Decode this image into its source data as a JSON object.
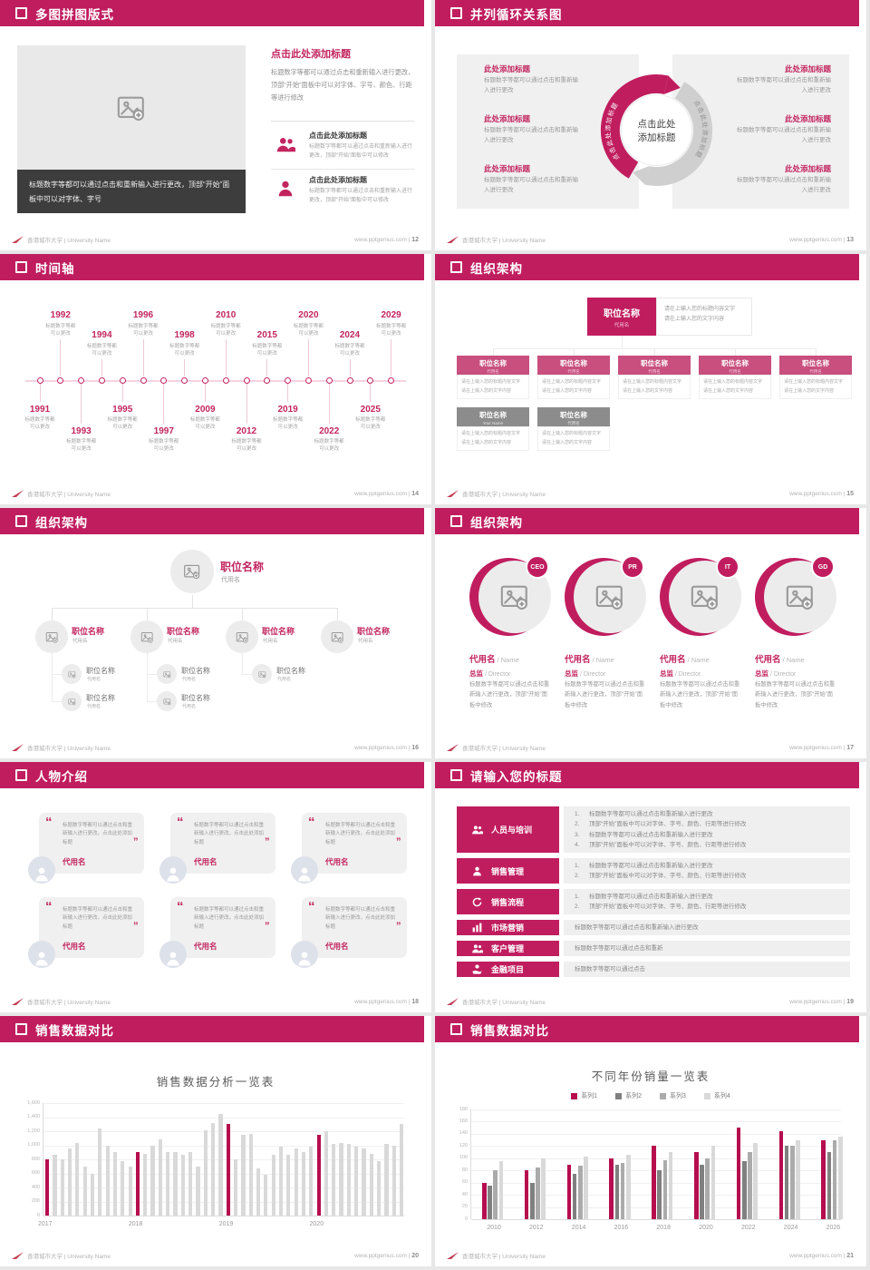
{
  "page_bg": "#e7e7e7",
  "colors": {
    "accent": "#c01d5f",
    "crimson": "#b60d4e",
    "row_pink": "#c84f7e",
    "gray_box": "#8c8c8c",
    "panel": "#f0f0f0",
    "dark_box": "#3d3d3d",
    "text_gray": "#9a9a9a",
    "series": [
      "#b60d4e",
      "#808080",
      "#ababab",
      "#d9d9d9"
    ]
  },
  "footer": {
    "university": "香港城市大学 | University Name",
    "site": "www.pptgenius.com"
  },
  "slides": [
    {
      "page_no": "12",
      "title": "多图拼图版式",
      "kind": "puzzle",
      "content": {
        "image_icon": "image-placeholder-icon",
        "caption": "标题数字等都可以通过点击和重新输入进行更改，顶部“开始”面板中可以对字体、字号",
        "right_title": "点击此处添加标题",
        "right_body": "标题数字等都可以通过点击和重新输入进行更改，顶部“开始”面板中可以对字体、字号、颜色、行距等进行修改",
        "items": [
          {
            "icon": "people-icon",
            "title": "点击此处添加标题",
            "body": "标题数字等都可以通过点击和重新输入进行更改，顶部“开始”面板中可以修改"
          },
          {
            "icon": "person-icon",
            "title": "点击此处添加标题",
            "body": "标题数字等都可以通过点击和重新输入进行更改，顶部“开始”面板中可以修改"
          }
        ]
      }
    },
    {
      "page_no": "13",
      "title": "并列循环关系图",
      "kind": "cycle",
      "content": {
        "left_items": [
          {
            "t": "此处添加标题",
            "b": "标题数字等都可以通过点击和重新输入进行更改"
          },
          {
            "t": "此处添加标题",
            "b": "标题数字等都可以通过点击和重新输入进行更改"
          },
          {
            "t": "此处添加标题",
            "b": "标题数字等都可以通过点击和重新输入进行更改"
          }
        ],
        "right_items": [
          {
            "t": "此处添加标题",
            "b": "标题数字等都可以通过点击和重新输入进行更改"
          },
          {
            "t": "此处添加标题",
            "b": "标题数字等都可以通过点击和重新输入进行更改"
          },
          {
            "t": "此处添加标题",
            "b": "标题数字等都可以通过点击和重新输入进行更改"
          }
        ],
        "center_line1": "点击此处",
        "center_line2": "添加标题",
        "arrow_label": "点击此处添加标题"
      }
    },
    {
      "page_no": "14",
      "title": "时间轴",
      "kind": "timeline",
      "content": {
        "caption_line1": "标题数字等都",
        "caption_line2": "可以更改",
        "entries": [
          {
            "year": "1991",
            "side": "b"
          },
          {
            "year": "1992",
            "side": "a"
          },
          {
            "year": "1993",
            "side": "b"
          },
          {
            "year": "1994",
            "side": "a"
          },
          {
            "year": "1995",
            "side": "b"
          },
          {
            "year": "1996",
            "side": "a"
          },
          {
            "year": "1997",
            "side": "b"
          },
          {
            "year": "1998",
            "side": "a"
          },
          {
            "year": "2009",
            "side": "b"
          },
          {
            "year": "2010",
            "side": "a"
          },
          {
            "year": "2012",
            "side": "b"
          },
          {
            "year": "2015",
            "side": "a"
          },
          {
            "year": "2019",
            "side": "b"
          },
          {
            "year": "2020",
            "side": "a"
          },
          {
            "year": "2022",
            "side": "b"
          },
          {
            "year": "2024",
            "side": "a"
          },
          {
            "year": "2025",
            "side": "b"
          },
          {
            "year": "2029",
            "side": "a"
          }
        ]
      }
    },
    {
      "page_no": "15",
      "title": "组织架构",
      "kind": "orggrid",
      "content": {
        "root": {
          "title": "职位名称",
          "name": "代用名"
        },
        "note_lines": [
          "请在上输入您的标题内容文字",
          "请在上输入您的文字内容"
        ],
        "body_lines": [
          "请在上输入您的标题内容文字",
          "请在上输入您的文字内容"
        ],
        "row1": [
          {
            "title": "职位名称",
            "name": "代用名"
          },
          {
            "title": "职位名称",
            "name": "代用名"
          },
          {
            "title": "职位名称",
            "name": "代用名"
          },
          {
            "title": "职位名称",
            "name": "代用名"
          },
          {
            "title": "职位名称",
            "name": "代用名"
          }
        ],
        "row2": [
          {
            "title": "职位名称",
            "name": "Your Name"
          },
          {
            "title": "职位名称",
            "name": "代用名"
          }
        ]
      }
    },
    {
      "page_no": "16",
      "title": "组织架构",
      "kind": "orgtree",
      "content": {
        "root": {
          "title": "职位名称",
          "name": "代用名"
        },
        "children": [
          {
            "title": "职位名称",
            "name": "代用名",
            "subs": [
              {
                "t": "职位名称",
                "n": "代用名"
              },
              {
                "t": "职位名称",
                "n": "代用名"
              }
            ]
          },
          {
            "title": "职位名称",
            "name": "代用名",
            "subs": [
              {
                "t": "职位名称",
                "n": "代用名"
              },
              {
                "t": "职位名称",
                "n": "代用名"
              }
            ]
          },
          {
            "title": "职位名称",
            "name": "代用名",
            "subs": [
              {
                "t": "职位名称",
                "n": "代用名"
              }
            ]
          },
          {
            "title": "职位名称",
            "name": "代用名",
            "subs": []
          }
        ]
      }
    },
    {
      "page_no": "17",
      "title": "组织架构",
      "kind": "orgcircles",
      "content": {
        "members": [
          {
            "badge": "CEO",
            "name": "代用名",
            "name_en": "Name",
            "role": "总监",
            "role_en": "Director",
            "body": "标题数字等都可以通过点击和重新输入进行更改，顶部“开始”面板中修改"
          },
          {
            "badge": "PR",
            "name": "代用名",
            "name_en": "Name",
            "role": "总监",
            "role_en": "Director",
            "body": "标题数字等都可以通过点击和重新输入进行更改，顶部“开始”面板中修改"
          },
          {
            "badge": "IT",
            "name": "代用名",
            "name_en": "Name",
            "role": "总监",
            "role_en": "Director",
            "body": "标题数字等都可以通过点击和重新输入进行更改，顶部“开始”面板中修改"
          },
          {
            "badge": "GD",
            "name": "代用名",
            "name_en": "Name",
            "role": "总监",
            "role_en": "Director",
            "body": "标题数字等都可以通过点击和重新输入进行更改，顶部“开始”面板中修改"
          }
        ]
      }
    },
    {
      "page_no": "18",
      "title": "人物介绍",
      "kind": "people",
      "content": {
        "cards": [
          {
            "quote": "标题数字等都可以通过点击和重新输入进行更改，点击此处添加标题",
            "name": "代用名"
          },
          {
            "quote": "标题数字等都可以通过点击和重新输入进行更改，点击此处添加标题",
            "name": "代用名"
          },
          {
            "quote": "标题数字等都可以通过点击和重新输入进行更改，点击此处添加标题",
            "name": "代用名"
          },
          {
            "quote": "标题数字等都可以通过点击和重新输入进行更改，点击此处添加标题",
            "name": "代用名"
          },
          {
            "quote": "标题数字等都可以通过点击和重新输入进行更改，点击此处添加标题",
            "name": "代用名"
          },
          {
            "quote": "标题数字等都可以通过点击和重新输入进行更改，点击此处添加标题",
            "name": "代用名"
          }
        ]
      }
    },
    {
      "page_no": "19",
      "title": "请输入您的标题",
      "kind": "agenda",
      "content": {
        "rows": [
          {
            "icon": "training-people-icon",
            "label": "人员与培训",
            "numbered": true,
            "lines": [
              "标题数字等都可以通过点击和重新输入进行更改",
              "顶部“开始”面板中可以对字体、字号、颜色、行距等进行修改",
              "标题数字等都可以通过点击和重新输入进行更改",
              "顶部“开始”面板中可以对字体、字号、颜色、行距等进行修改"
            ]
          },
          {
            "icon": "salesperson-icon",
            "label": "销售管理",
            "numbered": true,
            "lines": [
              "标题数字等都可以通过点击和重新输入进行更改",
              "顶部“开始”面板中可以对字体、字号、颜色、行距等进行修改"
            ]
          },
          {
            "icon": "cycle-icon",
            "label": "销售流程",
            "numbered": true,
            "lines": [
              "标题数字等都可以通过点击和重新输入进行更改",
              "顶部“开始”面板中可以对字体、字号、颜色、行距等进行修改"
            ]
          },
          {
            "icon": "bar-chart-icon",
            "label": "市场营销",
            "numbered": false,
            "lines": [
              "标题数字等都可以通过点击和重新输入进行更改"
            ]
          },
          {
            "icon": "customers-icon",
            "label": "客户管理",
            "numbered": false,
            "lines": [
              "标题数字等都可以通过点击和重新"
            ]
          },
          {
            "icon": "finance-icon",
            "label": "金融项目",
            "numbered": false,
            "lines": [
              "标题数字等都可以通过点击"
            ]
          }
        ]
      }
    },
    {
      "page_no": "20",
      "title": "销售数据对比",
      "kind": "chart",
      "content": {
        "chart_ref": 0
      }
    },
    {
      "page_no": "21",
      "title": "销售数据对比",
      "kind": "chart",
      "content": {
        "chart_ref": 1
      }
    }
  ],
  "chart_data": [
    {
      "type": "bar",
      "title": "销售数据分析一览表",
      "categories": [
        "2017",
        "2018",
        "2019",
        "2020"
      ],
      "values_monthly": {
        "2017": [
          800,
          870,
          800,
          950,
          1030,
          700,
          600,
          1240,
          1000,
          900,
          780,
          700
        ],
        "2018": [
          900,
          880,
          1000,
          1090,
          900,
          900,
          870,
          900,
          700,
          1210,
          1310,
          1450
        ],
        "2019": [
          1300,
          800,
          1150,
          1160,
          670,
          580,
          870,
          980,
          860,
          950,
          900,
          980
        ],
        "2020": [
          1150,
          1200,
          1020,
          1030,
          1020,
          980,
          960,
          880,
          780,
          1020,
          1000,
          1300
        ]
      },
      "highlight_note": "first bar of each year shown in crimson",
      "xlabel": "",
      "ylabel": "",
      "ylim": [
        0,
        1600
      ],
      "ytick_step": 200,
      "grid": true,
      "legend": false
    },
    {
      "type": "bar",
      "title": "不同年份销量一览表",
      "categories": [
        "2010",
        "2012",
        "2014",
        "2016",
        "2018",
        "2020",
        "2022",
        "2024",
        "2026"
      ],
      "series": [
        {
          "name": "系列1",
          "values": [
            60,
            80,
            90,
            100,
            120,
            110,
            150,
            145,
            130
          ]
        },
        {
          "name": "系列2",
          "values": [
            55,
            60,
            75,
            90,
            80,
            90,
            95,
            120,
            110
          ]
        },
        {
          "name": "系列3",
          "values": [
            80,
            85,
            88,
            92,
            97,
            100,
            110,
            120,
            130
          ]
        },
        {
          "name": "系列4",
          "values": [
            95,
            100,
            102,
            105,
            110,
            120,
            125,
            130,
            135
          ]
        }
      ],
      "xlabel": "",
      "ylabel": "",
      "ylim": [
        0,
        180
      ],
      "ytick_step": 20,
      "grid": true,
      "legend": true,
      "legend_position": "top"
    }
  ]
}
